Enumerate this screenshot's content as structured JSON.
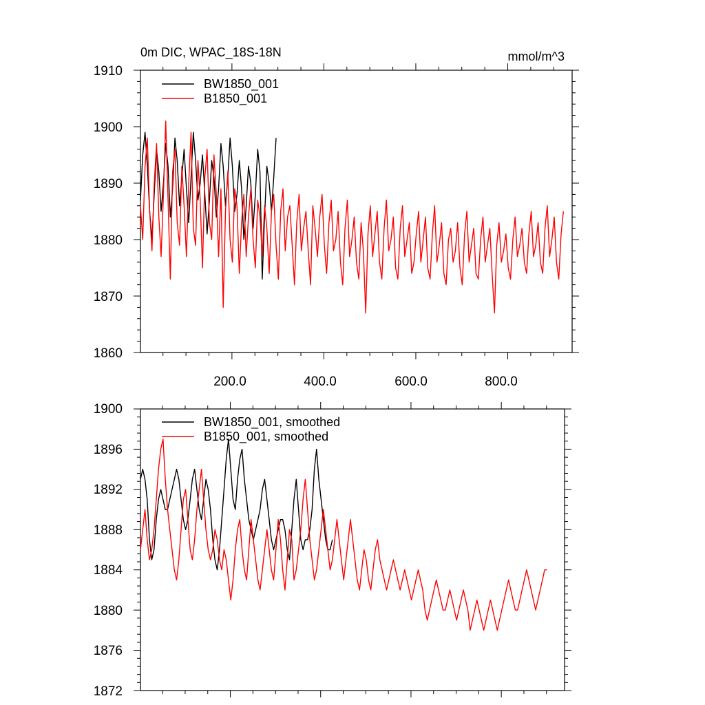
{
  "chart_data": [
    {
      "type": "line",
      "title": "0m DIC, WPAC_18S-18N",
      "units": "mmol/m^3",
      "xlim": [
        1,
        940
      ],
      "ylim": [
        1860,
        1910
      ],
      "yticks": [
        1860,
        1870,
        1880,
        1890,
        1900,
        1910
      ],
      "ytick_labels": [
        "1860",
        "1870",
        "1880",
        "1890",
        "1900",
        "1910"
      ],
      "xticks": [
        200,
        400,
        600,
        800
      ],
      "xtick_labels": [
        "200.0",
        "400.0",
        "600.0",
        "800.0"
      ],
      "legend": "top-left",
      "series": [
        {
          "name": "BW1850_001",
          "color": "#000000",
          "x_start": 1,
          "x_step": 5,
          "values": [
            1887,
            1895,
            1899,
            1893,
            1885,
            1880,
            1888,
            1896,
            1892,
            1885,
            1890,
            1897,
            1893,
            1884,
            1889,
            1898,
            1894,
            1886,
            1891,
            1896,
            1889,
            1883,
            1891,
            1899,
            1894,
            1887,
            1890,
            1895,
            1888,
            1881,
            1887,
            1894,
            1891,
            1884,
            1889,
            1897,
            1893,
            1886,
            1891,
            1898,
            1893,
            1885,
            1888,
            1894,
            1889,
            1880,
            1886,
            1893,
            1890,
            1882,
            1888,
            1896,
            1892,
            1873,
            1884,
            1893,
            1890,
            1885,
            1891,
            1898
          ]
        },
        {
          "name": "B1850_001",
          "color": "#ff0000",
          "x_start": 1,
          "x_step": 5,
          "values": [
            1886,
            1880,
            1893,
            1898,
            1885,
            1878,
            1890,
            1897,
            1884,
            1877,
            1888,
            1901,
            1887,
            1873,
            1892,
            1896,
            1883,
            1879,
            1893,
            1886,
            1877,
            1890,
            1899,
            1882,
            1879,
            1894,
            1887,
            1875,
            1891,
            1896,
            1883,
            1880,
            1895,
            1888,
            1877,
            1889,
            1868,
            1885,
            1892,
            1880,
            1876,
            1889,
            1886,
            1874,
            1883,
            1888,
            1877,
            1884,
            1889,
            1880,
            1875,
            1887,
            1884,
            1877,
            1886,
            1882,
            1874,
            1885,
            1888,
            1879,
            1873,
            1885,
            1889,
            1878,
            1884,
            1886,
            1879,
            1872,
            1883,
            1888,
            1878,
            1882,
            1885,
            1878,
            1872,
            1886,
            1882,
            1877,
            1884,
            1888,
            1879,
            1874,
            1883,
            1887,
            1878,
            1880,
            1885,
            1876,
            1872,
            1882,
            1887,
            1877,
            1880,
            1884,
            1876,
            1873,
            1883,
            1878,
            1867,
            1881,
            1886,
            1877,
            1881,
            1885,
            1876,
            1873,
            1882,
            1887,
            1878,
            1880,
            1884,
            1875,
            1873,
            1882,
            1886,
            1877,
            1880,
            1883,
            1874,
            1876,
            1881,
            1885,
            1876,
            1880,
            1884,
            1875,
            1873,
            1881,
            1886,
            1876,
            1879,
            1883,
            1874,
            1872,
            1880,
            1882,
            1876,
            1878,
            1883,
            1875,
            1872,
            1881,
            1885,
            1876,
            1879,
            1882,
            1874,
            1873,
            1880,
            1884,
            1876,
            1879,
            1882,
            1874,
            1867,
            1879,
            1883,
            1876,
            1878,
            1881,
            1875,
            1873,
            1880,
            1884,
            1877,
            1879,
            1882,
            1876,
            1874,
            1881,
            1885,
            1877,
            1879,
            1883,
            1876,
            1874,
            1882,
            1886,
            1877,
            1880,
            1884,
            1876,
            1873,
            1881,
            1885
          ]
        }
      ]
    },
    {
      "type": "line",
      "title": "",
      "xlim": [
        1,
        940
      ],
      "ylim": [
        1872,
        1900
      ],
      "yticks": [
        1872,
        1876,
        1880,
        1884,
        1888,
        1892,
        1896,
        1900
      ],
      "ytick_labels": [
        "1872",
        "1876",
        "1880",
        "1884",
        "1888",
        "1892",
        "1896",
        "1900"
      ],
      "xticks": [
        200,
        400,
        600,
        800
      ],
      "legend": "top-left",
      "series": [
        {
          "name": "BW1850_001, smoothed",
          "color": "#000000",
          "x_start": 1,
          "x_step": 5,
          "values": [
            1893,
            1894,
            1893,
            1891,
            1887,
            1885,
            1886,
            1889,
            1891,
            1892,
            1891,
            1890,
            1890,
            1891,
            1892,
            1893,
            1894,
            1893,
            1891,
            1889,
            1888,
            1889,
            1891,
            1893,
            1894,
            1892,
            1890,
            1889,
            1891,
            1893,
            1892,
            1890,
            1887,
            1885,
            1884,
            1886,
            1889,
            1892,
            1895,
            1897,
            1894,
            1891,
            1890,
            1893,
            1895,
            1896,
            1893,
            1891,
            1889,
            1888,
            1887,
            1888,
            1889,
            1890,
            1892,
            1893,
            1891,
            1889,
            1887,
            1886,
            1887,
            1888,
            1889,
            1889,
            1888,
            1886,
            1885,
            1888,
            1891,
            1893,
            1890,
            1887,
            1886,
            1887,
            1887,
            1888,
            1890,
            1894,
            1896,
            1893,
            1891,
            1889,
            1887,
            1886,
            1886,
            1887
          ]
        },
        {
          "name": "B1850_001, smoothed",
          "color": "#ff0000",
          "x_start": 1,
          "x_step": 5,
          "values": [
            1886,
            1888,
            1890,
            1887,
            1885,
            1886,
            1888,
            1891,
            1894,
            1896,
            1897,
            1893,
            1890,
            1888,
            1886,
            1884,
            1883,
            1885,
            1888,
            1891,
            1892,
            1889,
            1886,
            1885,
            1887,
            1890,
            1892,
            1894,
            1891,
            1888,
            1886,
            1885,
            1886,
            1888,
            1887,
            1885,
            1884,
            1886,
            1885,
            1883,
            1881,
            1883,
            1886,
            1888,
            1889,
            1886,
            1884,
            1883,
            1886,
            1889,
            1887,
            1885,
            1883,
            1882,
            1884,
            1886,
            1888,
            1886,
            1884,
            1883,
            1886,
            1889,
            1887,
            1884,
            1882,
            1885,
            1888,
            1887,
            1883,
            1884,
            1886,
            1888,
            1891,
            1893,
            1890,
            1887,
            1885,
            1883,
            1884,
            1886,
            1888,
            1890,
            1888,
            1886,
            1884,
            1885,
            1887,
            1889,
            1887,
            1885,
            1883,
            1885,
            1887,
            1889,
            1887,
            1885,
            1883,
            1882,
            1884,
            1886,
            1885,
            1883,
            1882,
            1884,
            1886,
            1887,
            1885,
            1884,
            1883,
            1882,
            1883,
            1884,
            1885,
            1884,
            1883,
            1882,
            1883,
            1884,
            1883,
            1882,
            1881,
            1882,
            1883,
            1884,
            1883,
            1882,
            1880,
            1879,
            1880,
            1881,
            1882,
            1883,
            1882,
            1881,
            1880,
            1880,
            1881,
            1882,
            1881,
            1880,
            1879,
            1880,
            1881,
            1882,
            1881,
            1880,
            1878,
            1879,
            1880,
            1881,
            1880,
            1879,
            1878,
            1879,
            1880,
            1881,
            1880,
            1879,
            1878,
            1879,
            1880,
            1881,
            1882,
            1883,
            1882,
            1881,
            1880,
            1880,
            1881,
            1882,
            1883,
            1884,
            1883,
            1882,
            1881,
            1880,
            1881,
            1882,
            1883,
            1884,
            1884
          ]
        }
      ]
    }
  ]
}
